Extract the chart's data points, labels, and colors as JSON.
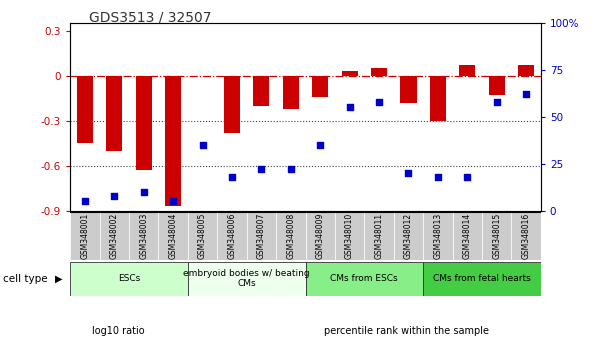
{
  "title": "GDS3513 / 32507",
  "samples": [
    "GSM348001",
    "GSM348002",
    "GSM348003",
    "GSM348004",
    "GSM348005",
    "GSM348006",
    "GSM348007",
    "GSM348008",
    "GSM348009",
    "GSM348010",
    "GSM348011",
    "GSM348012",
    "GSM348013",
    "GSM348014",
    "GSM348015",
    "GSM348016"
  ],
  "log10_ratio": [
    -0.45,
    -0.5,
    -0.63,
    -0.87,
    0.0,
    -0.38,
    -0.2,
    -0.22,
    -0.14,
    0.03,
    0.05,
    -0.18,
    -0.3,
    0.07,
    -0.13,
    0.07
  ],
  "percentile_rank": [
    5,
    8,
    10,
    5,
    35,
    18,
    22,
    22,
    35,
    55,
    58,
    20,
    18,
    18,
    58,
    62
  ],
  "cell_types": [
    {
      "label": "ESCs",
      "start": 0,
      "end": 4,
      "color": "#ccffcc"
    },
    {
      "label": "embryoid bodies w/ beating\nCMs",
      "start": 4,
      "end": 8,
      "color": "#eeffee"
    },
    {
      "label": "CMs from ESCs",
      "start": 8,
      "end": 12,
      "color": "#88ee88"
    },
    {
      "label": "CMs from fetal hearts",
      "start": 12,
      "end": 16,
      "color": "#44cc44"
    }
  ],
  "ylim_left": [
    -0.9,
    0.35
  ],
  "ylim_right": [
    0,
    100
  ],
  "yticks_left": [
    -0.9,
    -0.6,
    -0.3,
    0.0,
    0.3
  ],
  "ytick_labels_left": [
    "-0.9",
    "-0.6",
    "-0.3",
    "0",
    "0.3"
  ],
  "yticks_right": [
    0,
    25,
    50,
    75,
    100
  ],
  "ytick_labels_right": [
    "0",
    "25",
    "50",
    "75",
    "100%"
  ],
  "bar_color": "#cc0000",
  "dot_color": "#0000cc",
  "hline_color": "#cc0000",
  "dotted_color": "#444444",
  "legend_items": [
    {
      "label": "log10 ratio",
      "color": "#cc0000"
    },
    {
      "label": "percentile rank within the sample",
      "color": "#0000cc"
    }
  ],
  "cell_type_label": "cell type",
  "background_color": "#ffffff",
  "sample_box_color": "#cccccc",
  "plot_bg": "#ffffff"
}
